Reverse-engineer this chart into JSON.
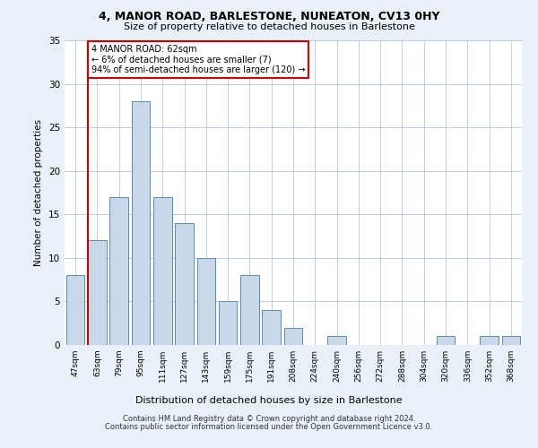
{
  "title1": "4, MANOR ROAD, BARLESTONE, NUNEATON, CV13 0HY",
  "title2": "Size of property relative to detached houses in Barlestone",
  "xlabel": "Distribution of detached houses by size in Barlestone",
  "ylabel": "Number of detached properties",
  "categories": [
    "47sqm",
    "63sqm",
    "79sqm",
    "95sqm",
    "111sqm",
    "127sqm",
    "143sqm",
    "159sqm",
    "175sqm",
    "191sqm",
    "208sqm",
    "224sqm",
    "240sqm",
    "256sqm",
    "272sqm",
    "288sqm",
    "304sqm",
    "320sqm",
    "336sqm",
    "352sqm",
    "368sqm"
  ],
  "values": [
    8,
    12,
    17,
    28,
    17,
    14,
    10,
    5,
    8,
    4,
    2,
    0,
    1,
    0,
    0,
    0,
    0,
    1,
    0,
    1,
    1
  ],
  "bar_color": "#c8d8e8",
  "bar_edge_color": "#5a8ab5",
  "vline_color": "#cc0000",
  "annotation_text": "4 MANOR ROAD: 62sqm\n← 6% of detached houses are smaller (7)\n94% of semi-detached houses are larger (120) →",
  "annotation_box_edge": "#cc0000",
  "annotation_box_face": "#ffffff",
  "ylim": [
    0,
    35
  ],
  "yticks": [
    0,
    5,
    10,
    15,
    20,
    25,
    30,
    35
  ],
  "bg_color": "#eaf0f8",
  "plot_bg_color": "#ffffff",
  "footer1": "Contains HM Land Registry data © Crown copyright and database right 2024.",
  "footer2": "Contains public sector information licensed under the Open Government Licence v3.0."
}
